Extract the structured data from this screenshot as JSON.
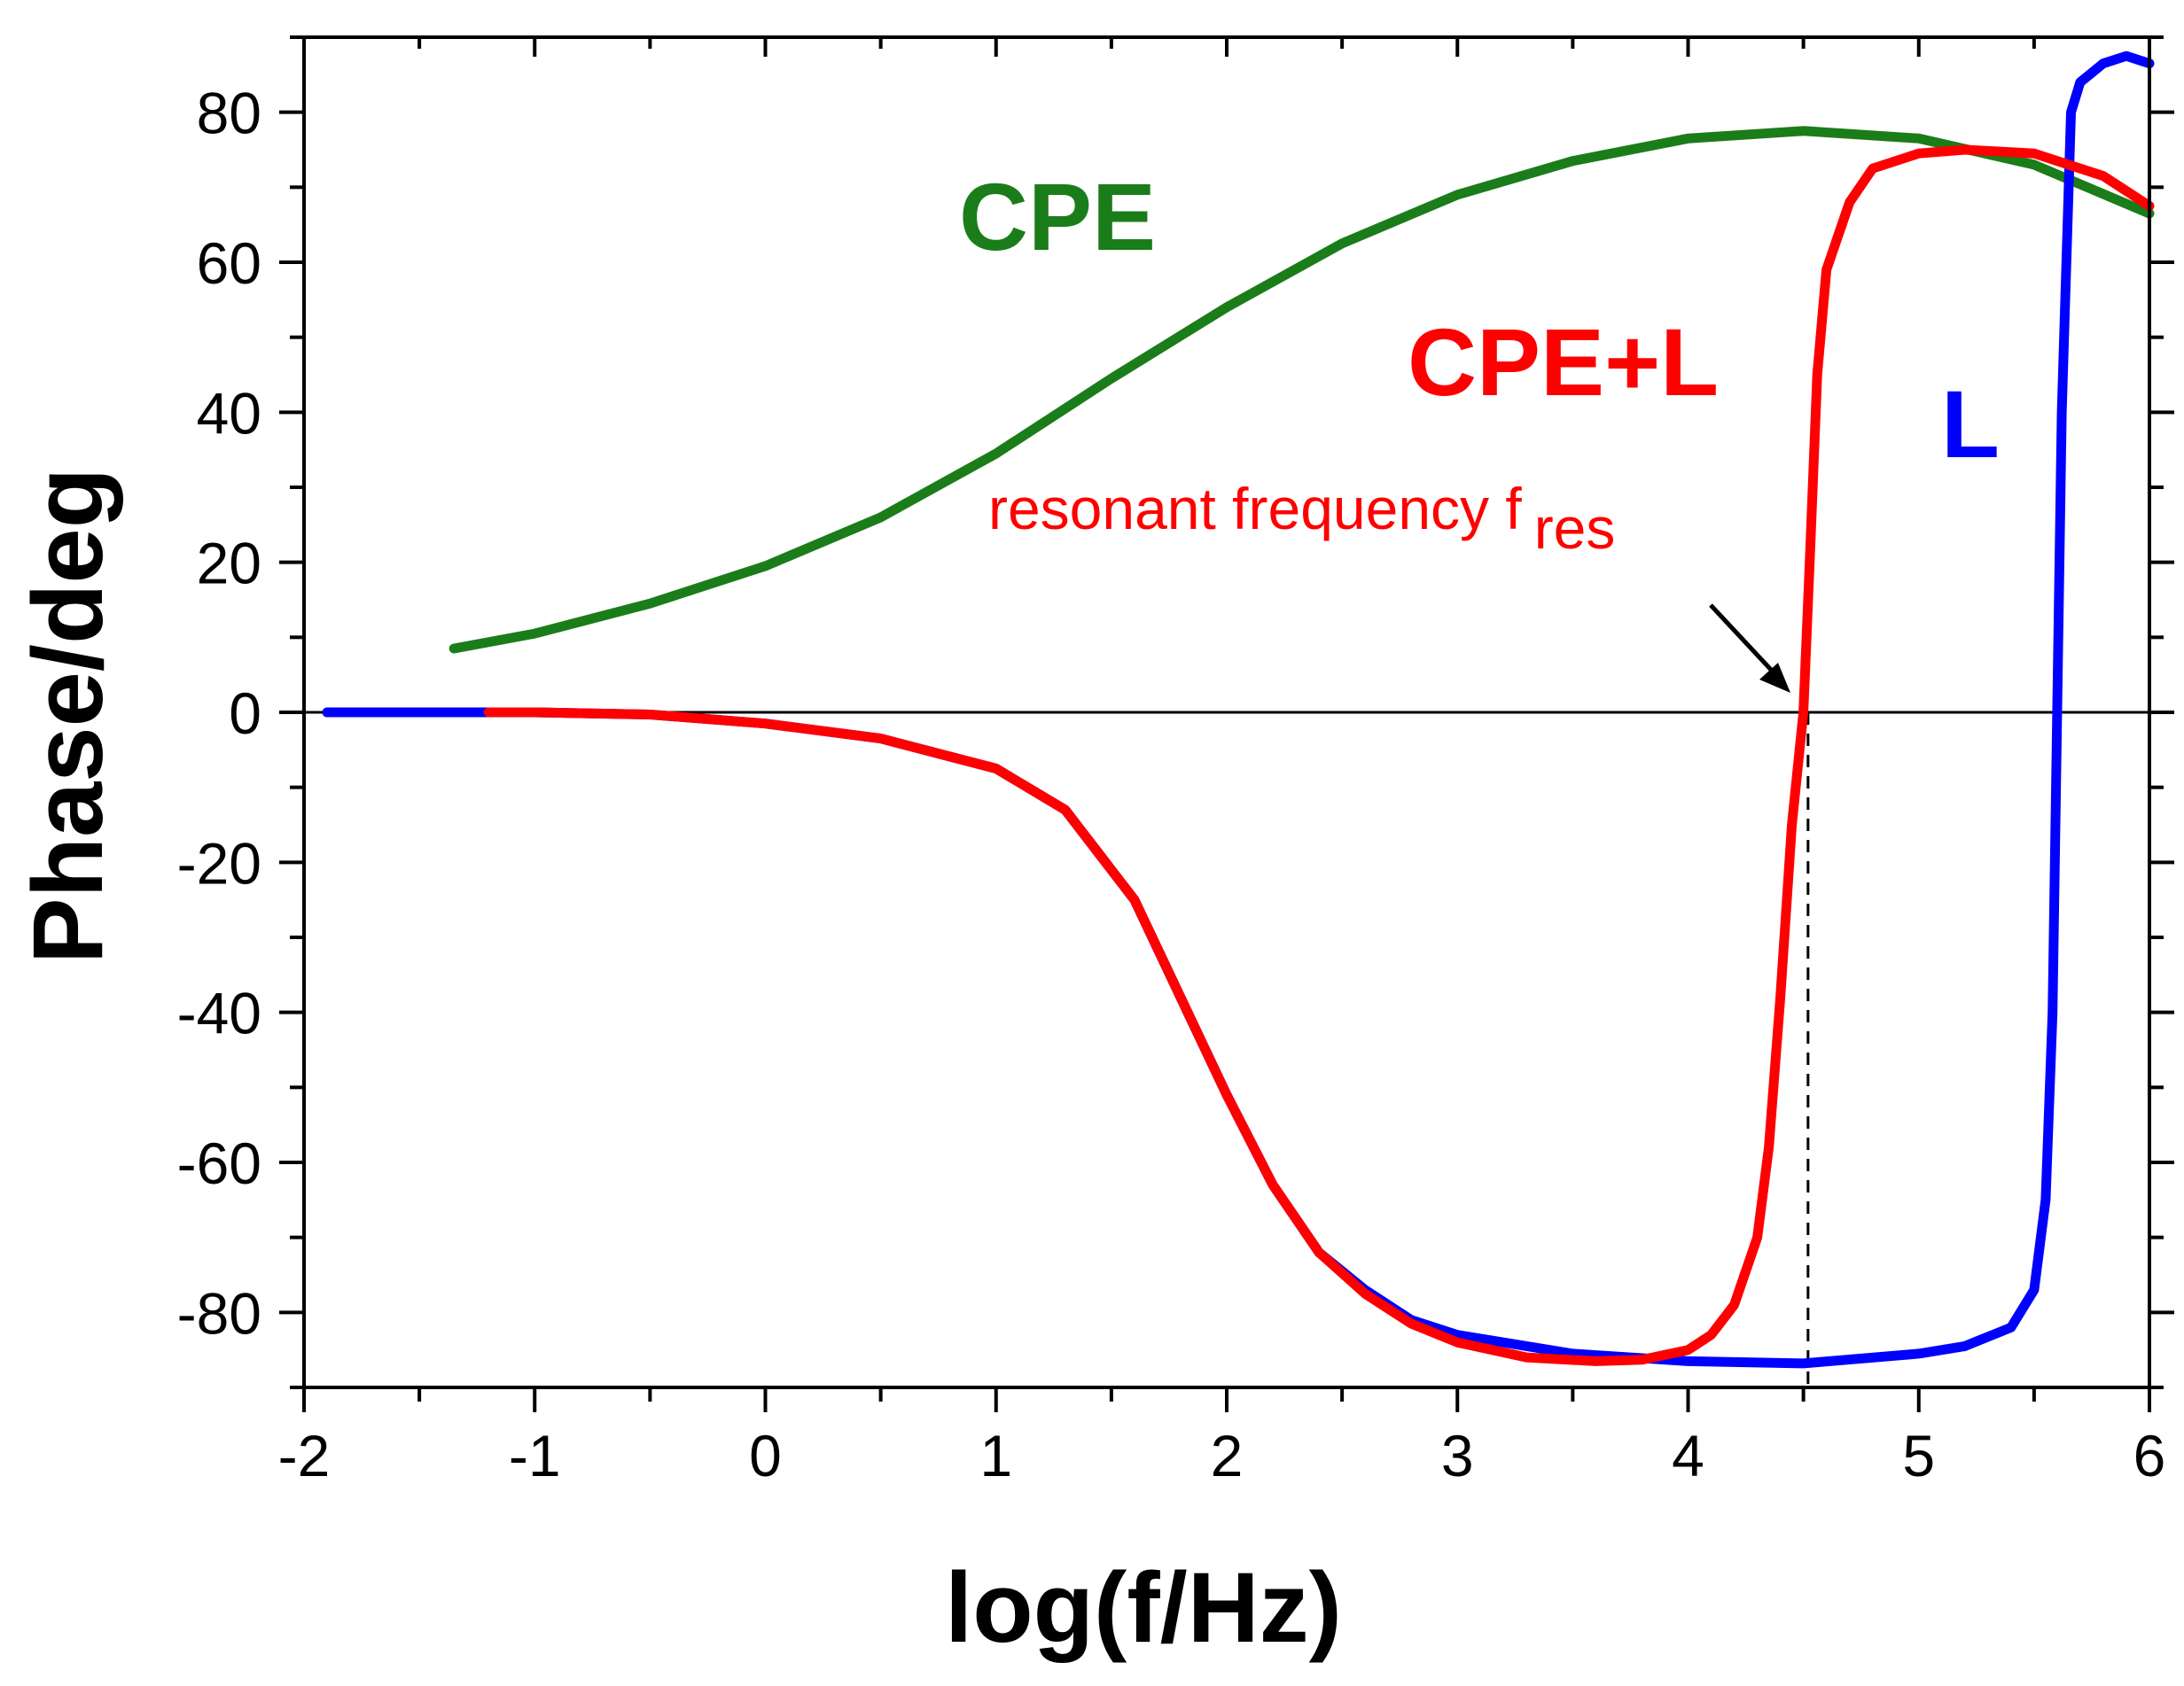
{
  "chart_data": {
    "type": "line",
    "title": "",
    "xlabel": "log(f/Hz)",
    "ylabel": "Phase/deg",
    "xlim": [
      -2,
      6
    ],
    "ylim": [
      -90,
      90
    ],
    "x_ticks": [
      "-2",
      "-1",
      "0",
      "1",
      "2",
      "3",
      "4",
      "5",
      "6"
    ],
    "y_ticks": [
      "-80",
      "-60",
      "-40",
      "-20",
      "0",
      "20",
      "40",
      "60",
      "80"
    ],
    "grid": false,
    "zero_line": 0,
    "series": [
      {
        "name": "CPE",
        "label": "CPE",
        "color": "#1a7d1a",
        "x": [
          -1.35,
          -1.0,
          -0.5,
          0.0,
          0.5,
          1.0,
          1.5,
          2.0,
          2.5,
          3.0,
          3.5,
          4.0,
          4.5,
          5.0,
          5.5,
          6.0
        ],
        "y": [
          8.5,
          10.5,
          14.5,
          19.5,
          26.0,
          34.5,
          44.5,
          54.0,
          62.5,
          69.0,
          73.5,
          76.5,
          77.5,
          76.5,
          73.0,
          66.5
        ]
      },
      {
        "name": "L",
        "label": "L",
        "color": "#0000ff",
        "x": [
          -1.9,
          -1.5,
          -1.0,
          -0.5,
          0.0,
          0.5,
          1.0,
          1.3,
          1.6,
          1.8,
          2.0,
          2.2,
          2.4,
          2.6,
          2.8,
          3.0,
          3.5,
          4.0,
          4.5,
          5.0,
          5.2,
          5.4,
          5.5,
          5.55,
          5.58,
          5.6,
          5.62,
          5.66,
          5.7,
          5.8,
          5.9,
          6.0
        ],
        "y": [
          0,
          0,
          0,
          -0.3,
          -1.5,
          -3.5,
          -7.5,
          -13,
          -25,
          -38,
          -51,
          -63,
          -72,
          -77,
          -81,
          -83,
          -85.5,
          -86.5,
          -86.8,
          -85.5,
          -84.5,
          -82,
          -77,
          -65,
          -40,
          0,
          40,
          80,
          84,
          86.5,
          87.5,
          86.5
        ]
      },
      {
        "name": "CPE+L",
        "label": "CPE+L",
        "color": "#ff0000",
        "x": [
          -1.2,
          -1.0,
          -0.5,
          0.0,
          0.5,
          1.0,
          1.3,
          1.6,
          1.8,
          2.0,
          2.2,
          2.4,
          2.6,
          2.8,
          3.0,
          3.3,
          3.6,
          3.8,
          4.0,
          4.1,
          4.2,
          4.3,
          4.35,
          4.4,
          4.45,
          4.5,
          4.53,
          4.56,
          4.6,
          4.7,
          4.8,
          5.0,
          5.2,
          5.5,
          5.8,
          6.0
        ],
        "y": [
          0,
          0,
          -0.3,
          -1.5,
          -3.5,
          -7.5,
          -13,
          -25,
          -38,
          -51,
          -63,
          -72,
          -77.5,
          -81.5,
          -84,
          -86,
          -86.5,
          -86.3,
          -85,
          -83,
          -79,
          -70,
          -58,
          -38,
          -15,
          0,
          22,
          45,
          59,
          68,
          72.5,
          74.5,
          75,
          74.5,
          71.5,
          67.5
        ]
      }
    ],
    "annotations": {
      "resonance_text": "resonant frequency f",
      "resonance_subscript": "res",
      "resonance_x": 4.52
    }
  }
}
